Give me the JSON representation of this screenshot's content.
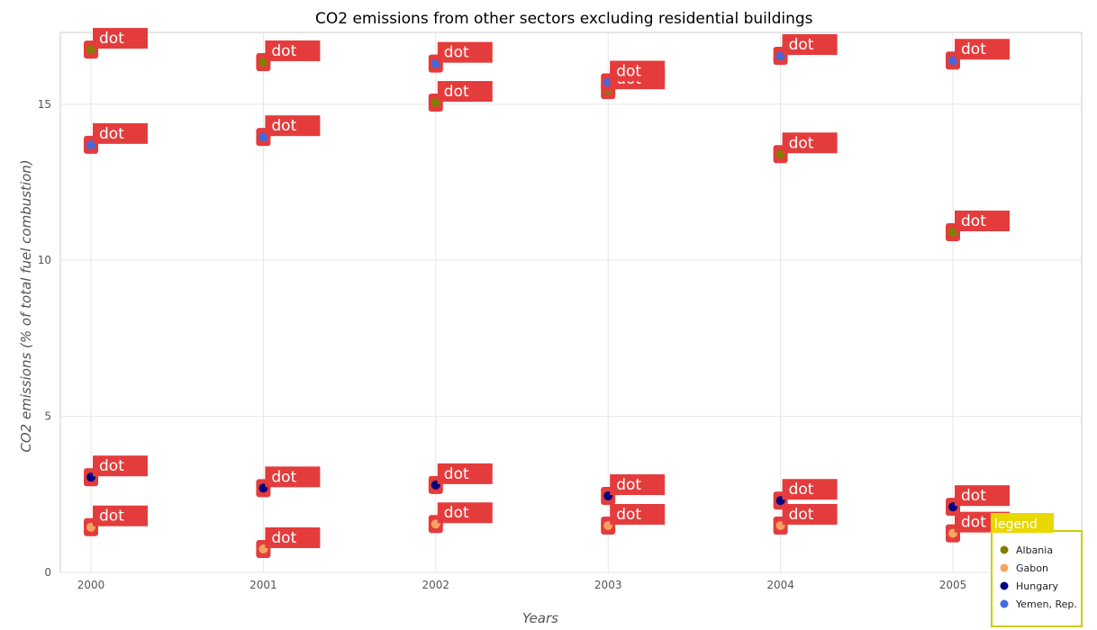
{
  "chart_data": {
    "type": "scatter",
    "title": "CO2 emissions from other sectors excluding residential buildings",
    "xlabel": "Years",
    "ylabel": "CO2 emissions (% of total fuel combustion)",
    "x": [
      "2000",
      "2001",
      "2002",
      "2003",
      "2004",
      "2005"
    ],
    "ylim": [
      0,
      17.3
    ],
    "yticks": [
      0,
      5,
      10,
      15
    ],
    "grid": true,
    "legend_title": "legend",
    "legend_position": "bottom-right",
    "point_label": "dot",
    "series": [
      {
        "name": "Albania",
        "color": "#808000",
        "values": [
          16.75,
          16.35,
          15.05,
          15.45,
          13.4,
          10.9
        ]
      },
      {
        "name": "Gabon",
        "color": "#f4a460",
        "values": [
          1.45,
          0.75,
          1.55,
          1.5,
          1.5,
          1.25
        ]
      },
      {
        "name": "Hungary",
        "color": "#000080",
        "values": [
          3.05,
          2.7,
          2.8,
          2.45,
          2.3,
          2.1
        ]
      },
      {
        "name": "Yemen, Rep.",
        "color": "#4169e1",
        "values": [
          13.7,
          13.95,
          16.3,
          15.7,
          16.55,
          16.4
        ]
      }
    ]
  }
}
